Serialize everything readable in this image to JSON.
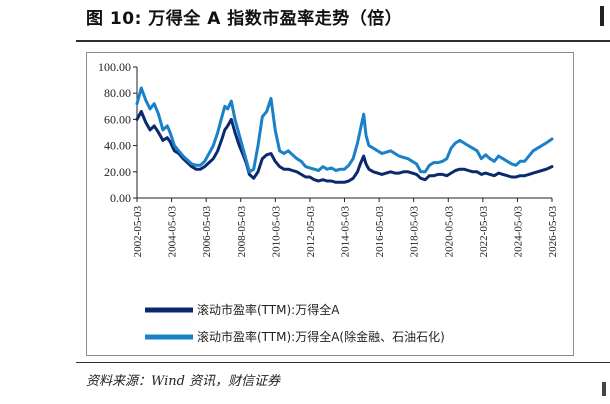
{
  "figure": {
    "title": "图 10:  万得全 A 指数市盈率走势（倍）",
    "source": "资料来源：Wind 资讯，财信证券"
  },
  "colors": {
    "series1": "#0b2a6e",
    "series2": "#1a80c8",
    "axis": "#222222"
  },
  "chart_data": {
    "type": "line",
    "title": "",
    "xlabel": "",
    "ylabel": "",
    "ylim": [
      0,
      100
    ],
    "yticks": [
      "100.00",
      "80.00",
      "60.00",
      "40.00",
      "20.00",
      "0.00"
    ],
    "xlim": [
      "2002-05-03",
      "2026-05-03"
    ],
    "xticks": [
      "2002-05-03",
      "2004-05-03",
      "2006-05-03",
      "2008-05-03",
      "2010-05-03",
      "2012-05-03",
      "2014-05-03",
      "2016-05-03",
      "2018-05-03",
      "2020-05-03",
      "2022-05-03",
      "2024-05-03",
      "2026-05-03"
    ],
    "grid": false,
    "legend_position": "bottom",
    "series": [
      {
        "name": "滚动市盈率(TTM):万得全A",
        "x": [
          "2002-05-03",
          "2002-08-01",
          "2002-11-01",
          "2003-02-01",
          "2003-05-01",
          "2003-08-01",
          "2003-11-01",
          "2004-02-01",
          "2004-04-01",
          "2004-07-01",
          "2004-10-01",
          "2005-01-01",
          "2005-04-01",
          "2005-07-01",
          "2005-10-01",
          "2006-01-01",
          "2006-04-01",
          "2006-07-01",
          "2006-10-01",
          "2007-01-01",
          "2007-04-01",
          "2007-06-01",
          "2007-08-01",
          "2007-10-15",
          "2008-01-01",
          "2008-04-01",
          "2008-07-01",
          "2008-09-01",
          "2008-11-01",
          "2009-02-01",
          "2009-05-01",
          "2009-08-01",
          "2009-11-01",
          "2010-02-01",
          "2010-05-01",
          "2010-08-01",
          "2010-11-01",
          "2011-02-01",
          "2011-05-01",
          "2011-08-01",
          "2011-11-01",
          "2012-02-01",
          "2012-05-01",
          "2012-08-01",
          "2012-11-01",
          "2013-02-01",
          "2013-05-01",
          "2013-08-01",
          "2013-11-01",
          "2014-02-01",
          "2014-05-01",
          "2014-08-01",
          "2014-11-01",
          "2015-02-01",
          "2015-04-01",
          "2015-06-12",
          "2015-08-01",
          "2015-10-01",
          "2016-01-01",
          "2016-04-01",
          "2016-07-01",
          "2016-10-01",
          "2017-01-01",
          "2017-04-01",
          "2017-07-01",
          "2017-10-01",
          "2018-01-01",
          "2018-04-01",
          "2018-07-01",
          "2018-10-01",
          "2019-01-01",
          "2019-04-01",
          "2019-07-01",
          "2019-10-01",
          "2020-01-01",
          "2020-04-01",
          "2020-07-01",
          "2020-10-01",
          "2021-01-01",
          "2021-04-01",
          "2021-07-01",
          "2021-10-01",
          "2022-01-01",
          "2022-04-01",
          "2022-07-01",
          "2022-10-01",
          "2023-01-01",
          "2023-04-01",
          "2023-07-01",
          "2023-10-01",
          "2024-01-01",
          "2024-04-01",
          "2024-07-01",
          "2024-10-01",
          "2025-01-01",
          "2025-04-01",
          "2025-07-01",
          "2025-10-01",
          "2026-01-01",
          "2026-05-03"
        ],
        "values": [
          60,
          66,
          58,
          52,
          55,
          50,
          44,
          46,
          43,
          36,
          34,
          30,
          27,
          24,
          22,
          22,
          24,
          27,
          30,
          36,
          45,
          52,
          55,
          60,
          50,
          40,
          32,
          26,
          18,
          15,
          20,
          30,
          33,
          34,
          28,
          24,
          22,
          22,
          21,
          20,
          18,
          16,
          16,
          14,
          13,
          14,
          13,
          13,
          12,
          12,
          12,
          13,
          15,
          20,
          26,
          32,
          26,
          22,
          20,
          19,
          18,
          19,
          20,
          19,
          19,
          20,
          20,
          19,
          18,
          15,
          14,
          17,
          17,
          18,
          18,
          17,
          19,
          21,
          22,
          22,
          21,
          20,
          20,
          18,
          19,
          18,
          17,
          19,
          18,
          17,
          16,
          16,
          17,
          17,
          18,
          19,
          20,
          21,
          22,
          24
        ]
      },
      {
        "name": "滚动市盈率(TTM):万得全A(除金融、石油石化)",
        "x": [
          "2002-05-03",
          "2002-08-01",
          "2002-11-01",
          "2003-02-01",
          "2003-05-01",
          "2003-08-01",
          "2003-11-01",
          "2004-02-01",
          "2004-04-01",
          "2004-07-01",
          "2004-10-01",
          "2005-01-01",
          "2005-04-01",
          "2005-07-01",
          "2005-10-01",
          "2006-01-01",
          "2006-04-01",
          "2006-07-01",
          "2006-10-01",
          "2007-01-01",
          "2007-04-01",
          "2007-06-01",
          "2007-08-01",
          "2007-10-15",
          "2008-01-01",
          "2008-04-01",
          "2008-07-01",
          "2008-09-01",
          "2008-11-01",
          "2009-02-01",
          "2009-05-01",
          "2009-08-01",
          "2009-11-01",
          "2010-02-01",
          "2010-05-01",
          "2010-08-01",
          "2010-11-01",
          "2011-02-01",
          "2011-05-01",
          "2011-08-01",
          "2011-11-01",
          "2012-02-01",
          "2012-05-01",
          "2012-08-01",
          "2012-11-01",
          "2013-02-01",
          "2013-05-01",
          "2013-08-01",
          "2013-11-01",
          "2014-02-01",
          "2014-05-01",
          "2014-08-01",
          "2014-11-01",
          "2015-02-01",
          "2015-04-01",
          "2015-06-12",
          "2015-08-01",
          "2015-10-01",
          "2016-01-01",
          "2016-04-01",
          "2016-07-01",
          "2016-10-01",
          "2017-01-01",
          "2017-04-01",
          "2017-07-01",
          "2017-10-01",
          "2018-01-01",
          "2018-04-01",
          "2018-07-01",
          "2018-10-01",
          "2019-01-01",
          "2019-04-01",
          "2019-07-01",
          "2019-10-01",
          "2020-01-01",
          "2020-04-01",
          "2020-07-01",
          "2020-10-01",
          "2021-01-01",
          "2021-04-01",
          "2021-07-01",
          "2021-10-01",
          "2022-01-01",
          "2022-04-01",
          "2022-07-01",
          "2022-10-01",
          "2023-01-01",
          "2023-04-01",
          "2023-07-01",
          "2023-10-01",
          "2024-01-01",
          "2024-04-01",
          "2024-07-01",
          "2024-10-01",
          "2025-01-01",
          "2025-04-01",
          "2025-07-01",
          "2025-10-01",
          "2026-01-01",
          "2026-05-03"
        ],
        "values": [
          72,
          84,
          75,
          68,
          72,
          64,
          52,
          55,
          50,
          40,
          36,
          32,
          29,
          26,
          25,
          25,
          28,
          34,
          40,
          50,
          62,
          70,
          68,
          74,
          60,
          48,
          36,
          28,
          20,
          22,
          40,
          62,
          66,
          76,
          52,
          36,
          34,
          36,
          33,
          30,
          28,
          24,
          23,
          22,
          21,
          24,
          22,
          23,
          21,
          22,
          22,
          25,
          30,
          42,
          52,
          64,
          48,
          40,
          38,
          36,
          34,
          35,
          36,
          34,
          32,
          31,
          30,
          28,
          26,
          20,
          20,
          25,
          27,
          27,
          28,
          30,
          38,
          42,
          44,
          42,
          40,
          38,
          36,
          30,
          33,
          30,
          28,
          32,
          30,
          28,
          26,
          25,
          28,
          28,
          32,
          36,
          38,
          40,
          42,
          45
        ]
      }
    ]
  }
}
